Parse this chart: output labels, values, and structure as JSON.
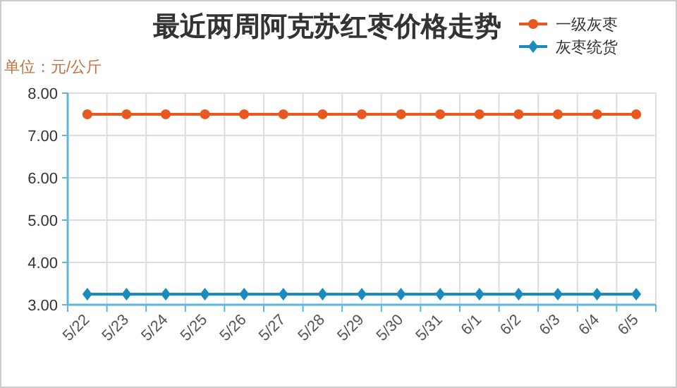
{
  "chart_data": {
    "type": "line",
    "title": "最近两周阿克苏红枣价格走势",
    "ylabel": "单位：元/公斤",
    "categories": [
      "5/22",
      "5/23",
      "5/24",
      "5/25",
      "5/26",
      "5/27",
      "5/28",
      "5/29",
      "5/30",
      "5/31",
      "6/1",
      "6/2",
      "6/3",
      "6/4",
      "6/5"
    ],
    "series": [
      {
        "name": "一级灰枣",
        "color": "#e8581f",
        "marker": "circle",
        "values": [
          7.5,
          7.5,
          7.5,
          7.5,
          7.5,
          7.5,
          7.5,
          7.5,
          7.5,
          7.5,
          7.5,
          7.5,
          7.5,
          7.5,
          7.5
        ]
      },
      {
        "name": "灰枣统货",
        "color": "#1a8bbf",
        "marker": "diamond",
        "values": [
          3.25,
          3.25,
          3.25,
          3.25,
          3.25,
          3.25,
          3.25,
          3.25,
          3.25,
          3.25,
          3.25,
          3.25,
          3.25,
          3.25,
          3.25
        ]
      }
    ],
    "ylim": [
      3,
      8
    ],
    "yticks": [
      {
        "value": 3,
        "label": "3.00"
      },
      {
        "value": 4,
        "label": "4.00"
      },
      {
        "value": 5,
        "label": "5.00"
      },
      {
        "value": 6,
        "label": "6.00"
      },
      {
        "value": 7,
        "label": "7.00"
      },
      {
        "value": 8,
        "label": "8.00"
      }
    ],
    "grid": true,
    "legend": "top right",
    "line_style": "solid"
  }
}
